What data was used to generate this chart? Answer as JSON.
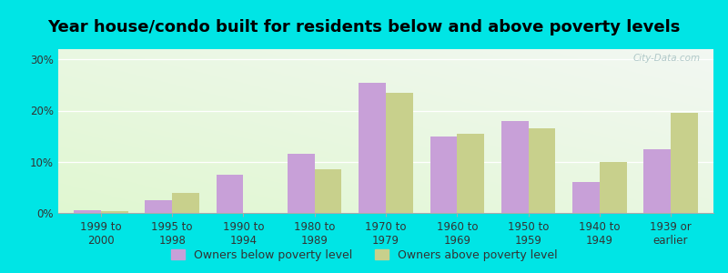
{
  "title": "Year house/condo built for residents below and above poverty levels",
  "categories": [
    "1999 to\n2000",
    "1995 to\n1998",
    "1990 to\n1994",
    "1980 to\n1989",
    "1970 to\n1979",
    "1960 to\n1969",
    "1950 to\n1959",
    "1940 to\n1949",
    "1939 or\nearlier"
  ],
  "below_poverty": [
    0.5,
    2.5,
    7.5,
    11.5,
    25.5,
    15.0,
    18.0,
    6.0,
    12.5
  ],
  "above_poverty": [
    0.3,
    4.0,
    0.0,
    8.5,
    23.5,
    15.5,
    16.5,
    10.0,
    19.5
  ],
  "below_color": "#c8a0d8",
  "above_color": "#c8d08c",
  "background_color": "#00e5e5",
  "yticks": [
    0,
    10,
    20,
    30
  ],
  "ylim": [
    0,
    32
  ],
  "title_fontsize": 13,
  "tick_fontsize": 8.5,
  "legend_fontsize": 9,
  "bar_width": 0.38,
  "watermark": "City-Data.com"
}
